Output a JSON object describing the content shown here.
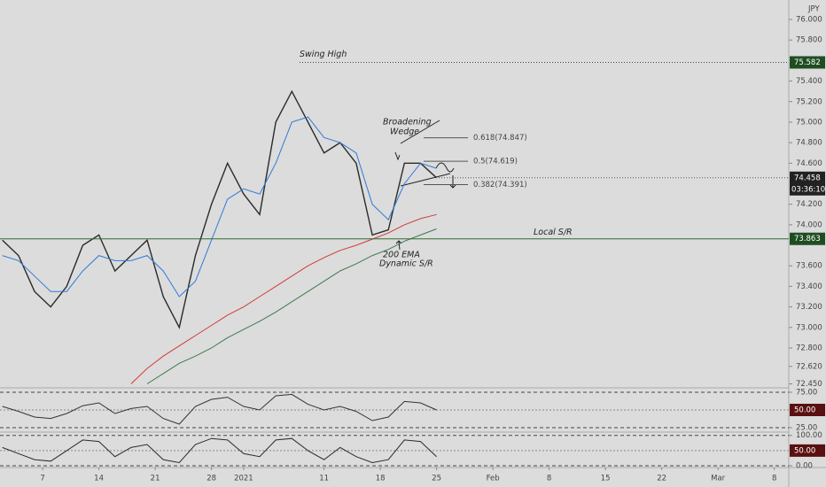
{
  "chart_data": [
    {
      "type": "line",
      "currency": "JPY",
      "xlim": [
        -5.3,
        92.8
      ],
      "ylim": [
        72.42,
        76.19
      ],
      "xticks": [
        {
          "value": 0,
          "label": "7"
        },
        {
          "value": 7,
          "label": "14"
        },
        {
          "value": 14,
          "label": "21"
        },
        {
          "value": 21,
          "label": "28"
        },
        {
          "value": 25,
          "label": "2021"
        },
        {
          "value": 35,
          "label": "11"
        },
        {
          "value": 42,
          "label": "18"
        },
        {
          "value": 49,
          "label": "25"
        },
        {
          "value": 56,
          "label": "Feb"
        },
        {
          "value": 63,
          "label": "8"
        },
        {
          "value": 70,
          "label": "15"
        },
        {
          "value": 77,
          "label": "22"
        },
        {
          "value": 84,
          "label": "Mar"
        },
        {
          "value": 91,
          "label": "8"
        }
      ],
      "yticks": [
        {
          "value": 76.0,
          "label": "76.000"
        },
        {
          "value": 75.8,
          "label": "75.800"
        },
        {
          "value": 75.4,
          "label": "75.400"
        },
        {
          "value": 75.2,
          "label": "75.200"
        },
        {
          "value": 75.0,
          "label": "75.000"
        },
        {
          "value": 74.8,
          "label": "74.800"
        },
        {
          "value": 74.6,
          "label": "74.600"
        },
        {
          "value": 74.2,
          "label": "74.200"
        },
        {
          "value": 74.0,
          "label": "74.000"
        },
        {
          "value": 73.6,
          "label": "73.600"
        },
        {
          "value": 73.4,
          "label": "73.400"
        },
        {
          "value": 73.2,
          "label": "73.200"
        },
        {
          "value": 73.0,
          "label": "73.000"
        },
        {
          "value": 72.8,
          "label": "72.800"
        },
        {
          "value": 72.62,
          "label": "72.620"
        },
        {
          "value": 72.45,
          "label": "72.450"
        }
      ],
      "x": [
        -5,
        -3,
        -1,
        1,
        3,
        5,
        7,
        9,
        11,
        13,
        15,
        17,
        19,
        21,
        23,
        25,
        27,
        29,
        31,
        33,
        35,
        37,
        39,
        41,
        43,
        45,
        47,
        49
      ],
      "series": [
        {
          "color": "#2b2b2b",
          "values": [
            73.85,
            73.7,
            73.35,
            73.2,
            73.4,
            73.8,
            73.9,
            73.55,
            73.7,
            73.85,
            73.3,
            73.0,
            73.7,
            74.2,
            74.6,
            74.3,
            74.1,
            75.0,
            75.3,
            75.0,
            74.7,
            74.8,
            74.6,
            73.9,
            73.95,
            74.6,
            74.6,
            74.458
          ]
        },
        {
          "color": "#2e7bd6",
          "values": [
            73.7,
            73.65,
            73.5,
            73.35,
            73.35,
            73.55,
            73.7,
            73.65,
            73.65,
            73.7,
            73.55,
            73.3,
            73.45,
            73.85,
            74.25,
            74.35,
            74.3,
            74.6,
            75.0,
            75.05,
            74.85,
            74.8,
            74.7,
            74.2,
            74.05,
            74.4,
            74.6,
            74.55
          ]
        },
        {
          "color": "#d43a3a",
          "values": [
            null,
            null,
            null,
            null,
            null,
            null,
            null,
            null,
            72.45,
            72.6,
            72.72,
            72.82,
            72.92,
            73.02,
            73.12,
            73.2,
            73.3,
            73.4,
            73.5,
            73.6,
            73.68,
            73.75,
            73.8,
            73.86,
            73.92,
            74.0,
            74.06,
            74.1
          ]
        },
        {
          "color": "#3f7a4e",
          "values": [
            null,
            null,
            null,
            null,
            null,
            null,
            null,
            null,
            null,
            72.45,
            72.55,
            72.65,
            72.72,
            72.8,
            72.9,
            72.98,
            73.06,
            73.15,
            73.25,
            73.35,
            73.45,
            73.55,
            73.62,
            73.7,
            73.76,
            73.84,
            73.9,
            73.96
          ]
        }
      ],
      "swing_high": {
        "value": 75.582,
        "label": "75.582",
        "text": "Swing High"
      },
      "local_sr": {
        "value": 73.863,
        "label": "73.863",
        "text": "Local S/R"
      },
      "last_price": {
        "value": 74.458,
        "label": "74.458",
        "countdown": "03:36:10"
      },
      "fib_levels": [
        {
          "value": 74.847,
          "label": "0.618(74.847)"
        },
        {
          "value": 74.619,
          "label": "0.5(74.619)"
        },
        {
          "value": 74.391,
          "label": "0.382(74.391)"
        }
      ],
      "annotations": [
        "Broadening",
        "Wedge",
        "200 EMA",
        "Dynamic S/R"
      ]
    },
    {
      "type": "line",
      "ylim": [
        20,
        80
      ],
      "yticks": [
        {
          "value": 75,
          "label": "75.00"
        },
        {
          "value": 25,
          "label": "25.00"
        }
      ],
      "badge": {
        "value": 50,
        "label": "50.00"
      },
      "series": [
        {
          "color": "#333333",
          "values": [
            55,
            48,
            40,
            38,
            45,
            56,
            60,
            45,
            52,
            55,
            38,
            30,
            55,
            65,
            68,
            55,
            50,
            70,
            72,
            58,
            50,
            55,
            48,
            35,
            40,
            62,
            60,
            50
          ]
        }
      ]
    },
    {
      "type": "line",
      "ylim": [
        -3,
        108
      ],
      "yticks": [
        {
          "value": 100,
          "label": "100.00"
        },
        {
          "value": 0,
          "label": "0.00"
        }
      ],
      "badge": {
        "value": 50,
        "label": "50.00"
      },
      "series": [
        {
          "color": "#2a2a2a",
          "values": [
            60,
            40,
            20,
            15,
            50,
            85,
            80,
            30,
            60,
            70,
            20,
            10,
            70,
            90,
            85,
            40,
            30,
            85,
            90,
            50,
            20,
            60,
            30,
            10,
            20,
            85,
            80,
            30
          ]
        }
      ]
    }
  ]
}
